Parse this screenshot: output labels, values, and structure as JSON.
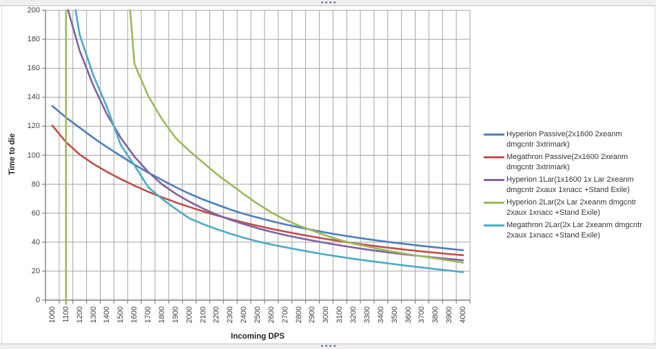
{
  "window": {
    "background": "#ffffff",
    "frame_strip_color": "#f1eeee",
    "frame_border_color": "#c9c3c3",
    "grip_dot_color": "#7e93ac"
  },
  "chart_data": {
    "type": "line",
    "title": "",
    "xlabel": "Incoming DPS",
    "ylabel": "Time to die",
    "x_ticks": [
      1000,
      1100,
      1200,
      1300,
      1400,
      1500,
      1600,
      1700,
      1800,
      1900,
      2000,
      2100,
      2200,
      2300,
      2400,
      2500,
      2600,
      2700,
      2800,
      2900,
      3000,
      3100,
      3200,
      3300,
      3400,
      3500,
      3600,
      3700,
      3800,
      3900,
      4000
    ],
    "ylim": [
      0,
      200
    ],
    "y_tick_step": 20,
    "grid": "both",
    "legend_position": "right",
    "grid_color": "#a3a3a3",
    "axis_color": "#7f7f7f",
    "note": "values above 200 are off-scale estimates (line clipped at plot top); null = line not visible",
    "series": [
      {
        "name": "Hyperion Passive(2x1600 2xeanm dmgcntr 3xtrimark)",
        "color": "#4F81BD",
        "values": [
          134,
          126,
          119,
          112,
          105.5,
          99.5,
          93.5,
          88,
          83,
          78,
          73.5,
          69.5,
          66,
          62.5,
          59.5,
          57,
          54.5,
          52.3,
          50.3,
          48.4,
          46.6,
          45,
          43.5,
          42.1,
          40.8,
          39.6,
          38.5,
          37.4,
          36.4,
          35.4,
          34.4
        ]
      },
      {
        "name": "Megathron Passive(2x1600 2xeanm dmgcntr 3xtrimark)",
        "color": "#C0504D",
        "values": [
          120.5,
          109,
          100.5,
          94,
          88.5,
          83.5,
          79,
          74.8,
          71,
          67.5,
          64.3,
          61.3,
          58.5,
          55.9,
          53.5,
          51.3,
          49.2,
          47.3,
          45.5,
          43.8,
          42.2,
          40.7,
          39.3,
          38,
          36.8,
          35.7,
          34.6,
          33.6,
          32.7,
          31.8,
          31
        ]
      },
      {
        "name": "Hyperion 1Lar(1x1600 1x Lar 2xeanm dmgcntr 2xaux 1xnacc +Stand Exile)",
        "color": "#8064A2",
        "values": [
          null,
          205,
          172,
          148,
          128,
          112,
          99,
          88.5,
          80,
          73.5,
          68,
          63.2,
          59,
          55.5,
          52.4,
          49.6,
          47.1,
          44.9,
          42.9,
          41.1,
          39.4,
          37.8,
          36.3,
          34.9,
          33.6,
          32.4,
          31.3,
          30.3,
          29.3,
          28.4,
          27.5
        ]
      },
      {
        "name": "Hyperion 2Lar(2x Lar 2xeanm dmgcntr 2xaux 1xnacc +Stand Exile)",
        "color": "#9BBB59",
        "vertical_line_x": 1100,
        "values": [
          null,
          null,
          null,
          null,
          null,
          280,
          163,
          141,
          125,
          112,
          103,
          95,
          87,
          80,
          73,
          66.5,
          60.5,
          55.5,
          51.5,
          48,
          44.5,
          41.5,
          39,
          37,
          35,
          33.3,
          31.7,
          30.2,
          28.8,
          27.3,
          25.8
        ]
      },
      {
        "name": "Megathron 2Lar(2x Lar 2xeanm dmgcntr 2xaux 1xnacc +Stand Exile)",
        "color": "#4BACC6",
        "values": [
          null,
          240,
          183,
          155,
          133,
          107,
          93,
          78,
          70,
          63,
          56.5,
          52.5,
          49,
          45.8,
          43,
          40.5,
          38.4,
          36.5,
          34.7,
          33,
          31.4,
          29.9,
          28.5,
          27.2,
          26,
          24.8,
          23.6,
          22.5,
          21.4,
          20.4,
          19.3
        ]
      }
    ]
  }
}
